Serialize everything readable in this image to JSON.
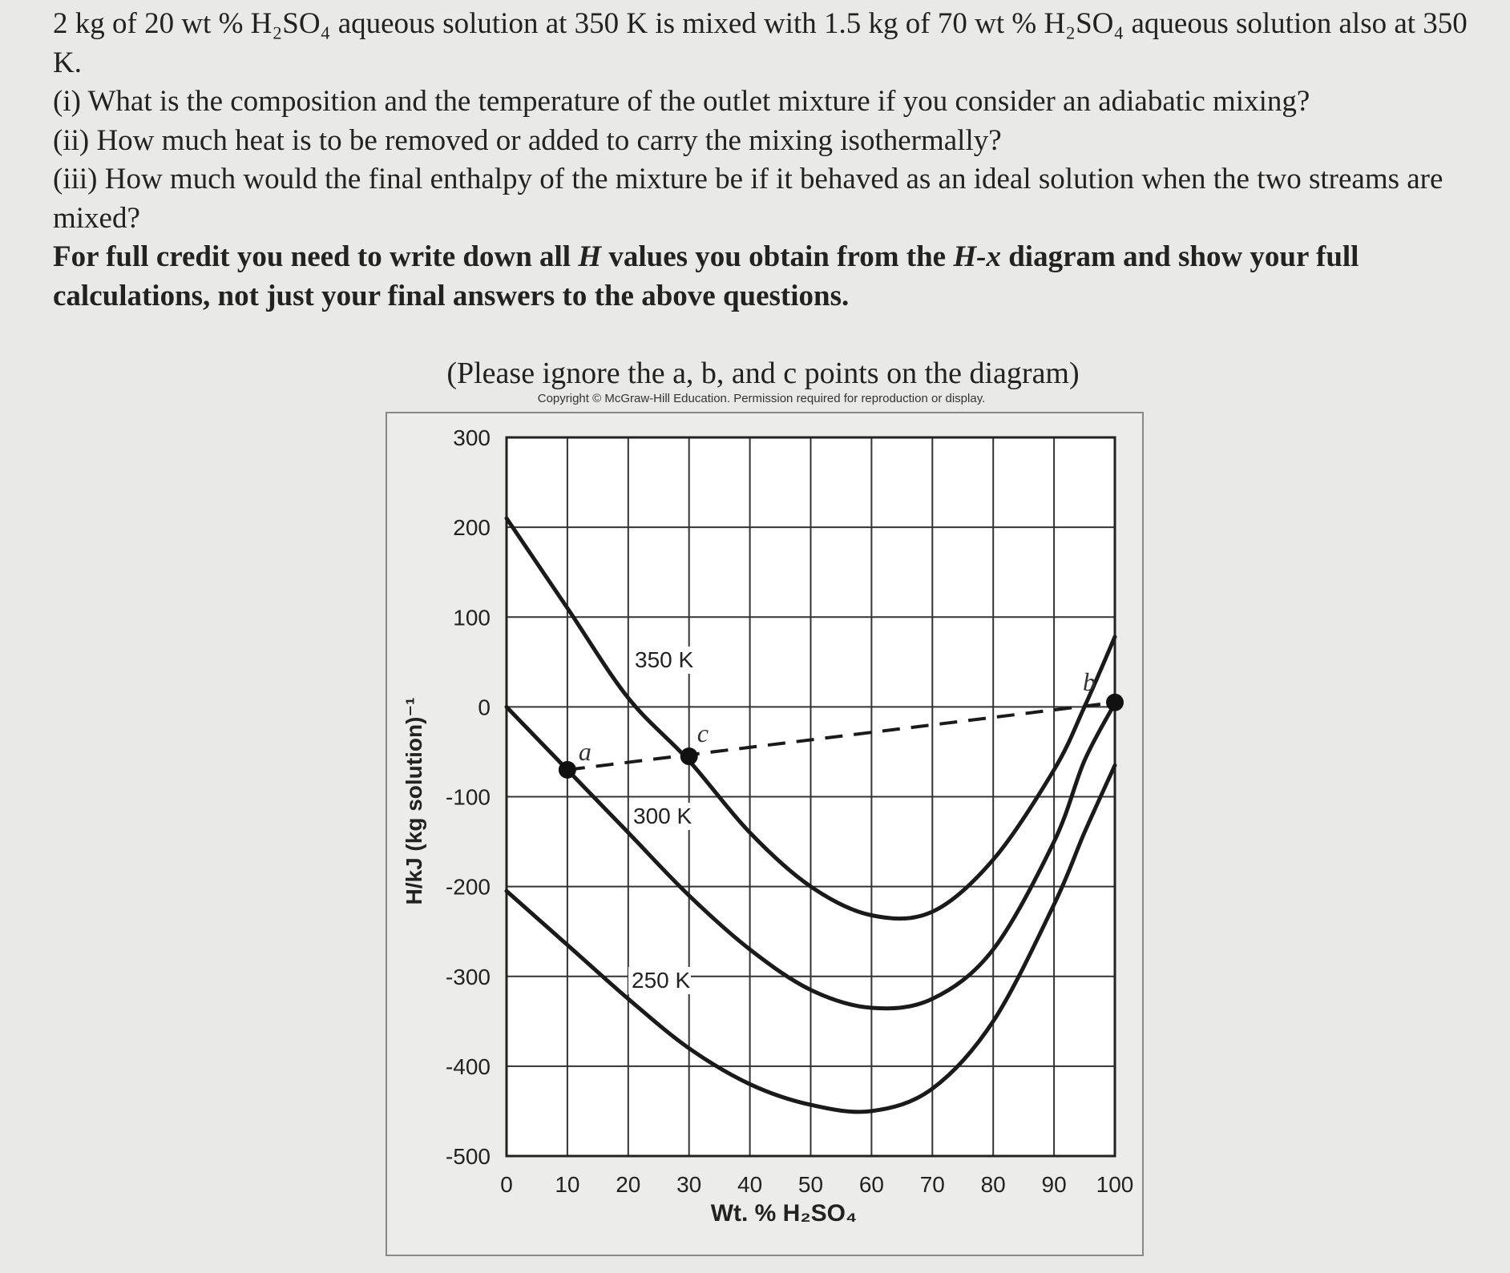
{
  "problem": {
    "intro": "2 kg of 20 wt % H₂SO₄ aqueous solution at 350 K is mixed with 1.5 kg of 70 wt % H₂SO₄ aqueous solution also at 350 K.",
    "q1": "(i) What is the composition and the temperature of the outlet mixture if you consider an adiabatic mixing?",
    "q2": "(ii) How much heat is to be removed or added to carry the mixing isothermally?",
    "q3": "(iii) How much would the final enthalpy of the mixture be if it behaved as an ideal solution when the two streams are mixed?",
    "instruction_pre": "For full credit you need to write down all ",
    "instruction_H": "H",
    "instruction_mid": " values you obtain from the ",
    "instruction_Hx": "H-x",
    "instruction_post": " diagram and show your full calculations, not just your final answers to the above questions."
  },
  "figure": {
    "note": "(Please ignore the a, b, and c points on the diagram)",
    "copyright": "Copyright © McGraw-Hill Education. Permission required for reproduction or display."
  },
  "chart_data": {
    "type": "line",
    "xlabel": "Wt. % H₂SO₄",
    "ylabel": "H/kJ (kg solution)⁻¹",
    "xlim": [
      0,
      100
    ],
    "ylim": [
      -500,
      300
    ],
    "xticks": [
      "0",
      "10",
      "20",
      "30",
      "40",
      "50",
      "60",
      "70",
      "80",
      "90",
      "100"
    ],
    "yticks": [
      "300",
      "200",
      "100",
      "0",
      "-100",
      "-200",
      "-300",
      "-400",
      "-500"
    ],
    "grid": true,
    "series": [
      {
        "name": "350 K",
        "x": [
          0,
          10,
          20,
          30,
          40,
          50,
          60,
          70,
          80,
          90,
          95,
          100
        ],
        "y": [
          210,
          110,
          10,
          -60,
          -140,
          -200,
          -232,
          -228,
          -170,
          -70,
          0,
          78
        ]
      },
      {
        "name": "300 K",
        "x": [
          0,
          10,
          20,
          30,
          40,
          50,
          60,
          70,
          80,
          90,
          95,
          100
        ],
        "y": [
          0,
          -70,
          -140,
          -210,
          -270,
          -315,
          -335,
          -325,
          -270,
          -150,
          -60,
          4
        ]
      },
      {
        "name": "250 K",
        "x": [
          0,
          10,
          20,
          30,
          40,
          50,
          60,
          70,
          80,
          90,
          95,
          100
        ],
        "y": [
          -205,
          -265,
          -325,
          -380,
          -420,
          -443,
          -450,
          -425,
          -350,
          -220,
          -140,
          -65
        ]
      }
    ],
    "points": [
      {
        "label": "a",
        "x": 10,
        "y": -70
      },
      {
        "label": "c",
        "x": 30,
        "y": -55
      },
      {
        "label": "b",
        "x": 100,
        "y": 5
      }
    ],
    "dashed_line": {
      "x": [
        10,
        100
      ],
      "y": [
        -70,
        5
      ]
    }
  }
}
